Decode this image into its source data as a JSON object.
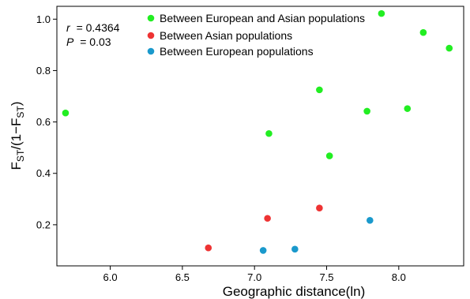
{
  "chart_data": {
    "type": "scatter",
    "xlabel": "Geographic distance(ln)",
    "ylabel": "F_ST/(1−F_ST)",
    "xlim": [
      5.63,
      8.45
    ],
    "ylim": [
      0.04,
      1.05
    ],
    "x_ticks": [
      "6.0",
      "6.5",
      "7.0",
      "7.5",
      "8.0"
    ],
    "y_ticks": [
      "0.2",
      "0.4",
      "0.6",
      "0.8",
      "1.0"
    ],
    "grid": false,
    "legend_position": "top",
    "annotations": {
      "r_label": "r",
      "r_value": "=  0.4364",
      "p_label": "P",
      "p_value": "= 0.03"
    },
    "series": [
      {
        "name": "Between European and Asian populations",
        "color": "#22ee22",
        "points": [
          {
            "x": 5.69,
            "y": 0.635
          },
          {
            "x": 7.1,
            "y": 0.555
          },
          {
            "x": 7.45,
            "y": 0.725
          },
          {
            "x": 7.52,
            "y": 0.468
          },
          {
            "x": 7.78,
            "y": 0.642
          },
          {
            "x": 7.88,
            "y": 1.022
          },
          {
            "x": 8.06,
            "y": 0.652
          },
          {
            "x": 8.17,
            "y": 0.948
          },
          {
            "x": 8.35,
            "y": 0.887
          }
        ]
      },
      {
        "name": "Between Asian populations",
        "color": "#ee3333",
        "points": [
          {
            "x": 6.68,
            "y": 0.11
          },
          {
            "x": 7.09,
            "y": 0.225
          },
          {
            "x": 7.45,
            "y": 0.265
          }
        ]
      },
      {
        "name": "Between European populations",
        "color": "#1a99cc",
        "points": [
          {
            "x": 7.06,
            "y": 0.1
          },
          {
            "x": 7.28,
            "y": 0.105
          },
          {
            "x": 7.8,
            "y": 0.217
          }
        ]
      }
    ]
  }
}
